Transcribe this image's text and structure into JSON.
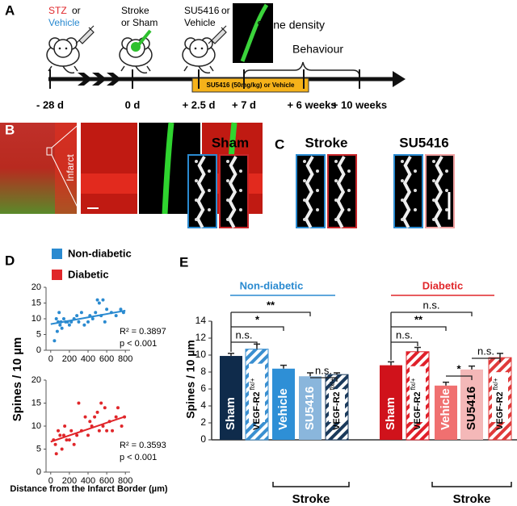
{
  "figure": {
    "a": {
      "label": "A",
      "stz": "STZ",
      "or": "or",
      "vehicle": "Vehicle",
      "stroke": "Stroke",
      "or_sham": "or Sham",
      "su": "SU5416",
      "su_or": "or",
      "su_vehicle": "Vehicle",
      "spine_density": "Spine density",
      "behaviour": "Behaviour",
      "treatment": "SU5416 (50mg/kg) or Vehicle",
      "timepoints": [
        "- 28 d",
        "0 d",
        "+ 2.5 d",
        "+ 7 d",
        "+ 6 weeks",
        "+ 10 weeks"
      ]
    },
    "b": {
      "label": "B",
      "infarct": "Infarct"
    },
    "c": {
      "label": "C",
      "groups": [
        "Sham",
        "Stroke",
        "SU5416"
      ]
    },
    "d": {
      "label": "D",
      "legend": [
        "Non-diabetic",
        "Diabetic"
      ],
      "y_label": "Spines / 10 µm",
      "x_label": "Distance from the Infarct Border (µm)"
    },
    "e": {
      "label": "E",
      "groups": [
        "Non-diabetic",
        "Diabetic"
      ],
      "stroke": [
        "Stroke",
        "Stroke"
      ]
    }
  },
  "chart_data": [
    {
      "type": "scatter",
      "color": "#2a8ad0",
      "x": [
        40,
        60,
        70,
        80,
        90,
        100,
        110,
        120,
        140,
        160,
        180,
        200,
        220,
        250,
        280,
        300,
        330,
        360,
        400,
        420,
        450,
        480,
        500,
        520,
        540,
        560,
        580,
        600,
        650,
        700,
        750,
        780
      ],
      "y": [
        3,
        10,
        6,
        9,
        12,
        8,
        9,
        7,
        10,
        9,
        9,
        8,
        9,
        10,
        11,
        9,
        12,
        8,
        9,
        11,
        10,
        12,
        16,
        15,
        11,
        16,
        9,
        13,
        12,
        11,
        13,
        12
      ],
      "fit": {
        "x": [
          0,
          800
        ],
        "y": [
          8.3,
          12.6
        ]
      },
      "annotations": [
        "R² = 0.3897",
        "p < 0.001"
      ],
      "xlim": [
        -50,
        850
      ],
      "ylim": [
        0,
        20
      ],
      "xticks": [
        0,
        200,
        400,
        600,
        800
      ],
      "yticks": [
        0,
        5,
        10,
        15,
        20
      ]
    },
    {
      "type": "scatter",
      "color": "#e0262a",
      "x": [
        30,
        50,
        60,
        80,
        100,
        120,
        140,
        150,
        170,
        200,
        220,
        250,
        280,
        300,
        330,
        370,
        400,
        420,
        440,
        470,
        500,
        520,
        540,
        560,
        580,
        600,
        630,
        660,
        700,
        720,
        760,
        790
      ],
      "y": [
        7,
        6,
        4,
        9,
        8,
        5,
        8,
        10,
        7,
        7,
        9,
        6,
        8,
        15,
        9,
        12,
        8,
        11,
        10,
        12,
        13,
        9,
        15,
        10,
        14,
        9,
        11,
        9,
        12,
        14,
        10,
        12
      ],
      "fit": {
        "x": [
          0,
          800
        ],
        "y": [
          6.6,
          12.1
        ]
      },
      "annotations": [
        "R² = 0.3593",
        "p < 0.001"
      ],
      "xlim": [
        -50,
        850
      ],
      "ylim": [
        0,
        20
      ],
      "xticks": [
        0,
        200,
        400,
        600,
        800
      ],
      "yticks": [
        0,
        5,
        10,
        15,
        20
      ]
    },
    {
      "type": "bar",
      "y_label": "Spines / 10 µm",
      "categories": [
        "Sham",
        "VEGF-R2",
        "Vehicle",
        "SU5416",
        "VEGF-R2",
        "Sham",
        "VEGF-R2",
        "Vehicle",
        "SU5416",
        "VEGF-R2"
      ],
      "category_superscripts": [
        null,
        "flx/+",
        null,
        null,
        "flx/+",
        null,
        "flx/+",
        null,
        null,
        "flx/+"
      ],
      "values": [
        9.9,
        10.7,
        8.4,
        7.5,
        7.7,
        8.8,
        10.4,
        6.4,
        8.3,
        9.7
      ],
      "errors": [
        0.3,
        0.6,
        0.4,
        0.4,
        0.2,
        0.4,
        0.5,
        0.4,
        0.4,
        0.5
      ],
      "colors": [
        "#0f2b4b",
        "#3a8fd0",
        "#2e8fd6",
        "#8ab6dc",
        "#1a3a5c",
        "#d0121b",
        "#e0202a",
        "#f07070",
        "#f4b8b8",
        "#e03a3a"
      ],
      "hatched": [
        false,
        true,
        false,
        false,
        true,
        false,
        true,
        false,
        false,
        true
      ],
      "label_colors": [
        "#fff",
        "#000",
        "#fff",
        "#fff",
        "#000",
        "#fff",
        "#000",
        "#fff",
        "#000",
        "#000"
      ],
      "annotations": [
        "n.s.",
        "*",
        "**",
        "n.s.",
        "n.s.",
        "**",
        "n.s.",
        "*",
        "n.s."
      ],
      "ylim": [
        0,
        14
      ],
      "yticks": [
        0,
        2,
        4,
        6,
        8,
        10,
        12,
        14
      ]
    }
  ]
}
